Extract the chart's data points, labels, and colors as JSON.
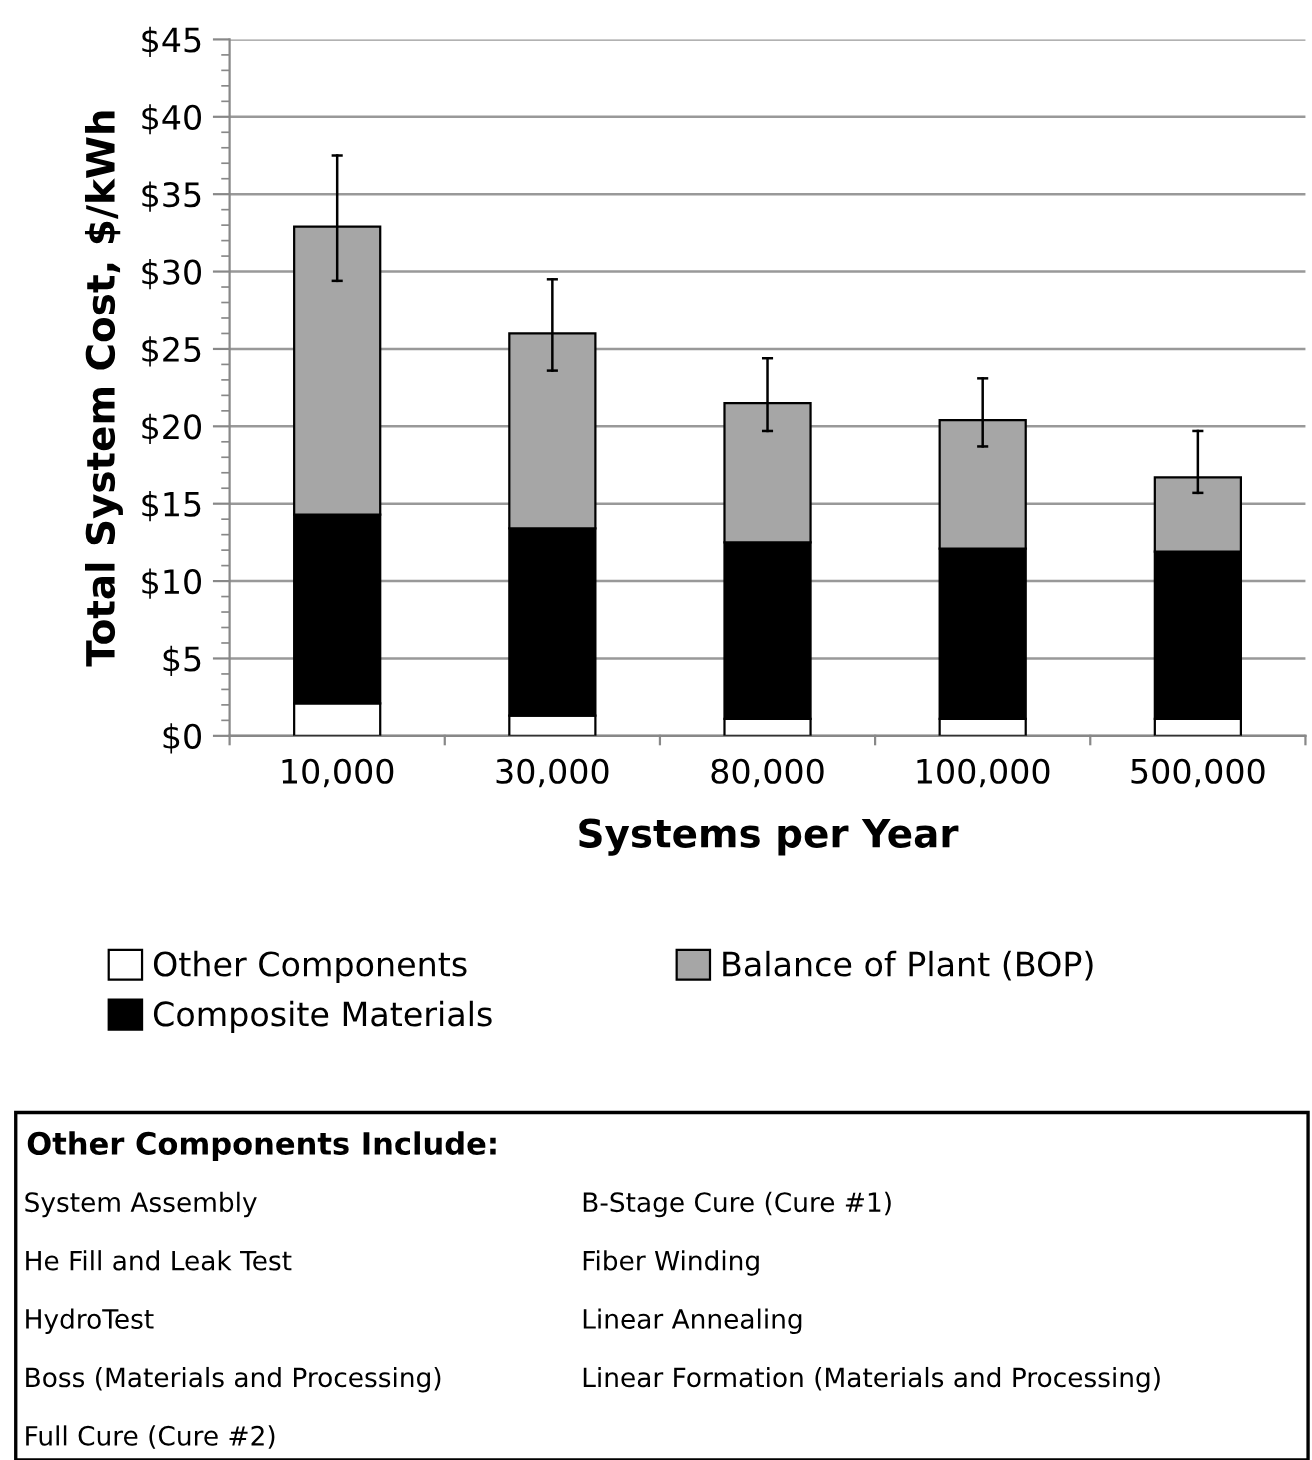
{
  "chart_data": {
    "type": "bar",
    "stacked": true,
    "xlabel": "Systems per Year",
    "ylabel": "Total System Cost, $/kWh",
    "categories": [
      "10,000",
      "30,000",
      "80,000",
      "100,000",
      "500,000"
    ],
    "series": [
      {
        "name": "Other Components",
        "color": "#ffffff",
        "values": [
          2.1,
          1.3,
          1.1,
          1.1,
          1.1
        ]
      },
      {
        "name": "Composite Materials",
        "color": "#000000",
        "values": [
          12.2,
          12.1,
          11.4,
          11.0,
          10.8
        ]
      },
      {
        "name": "Balance of Plant (BOP)",
        "color": "#a6a6a6",
        "values": [
          18.6,
          12.6,
          9.0,
          8.3,
          4.8
        ],
        "errors": [
          [
            29.4,
            37.5
          ],
          [
            23.6,
            29.5
          ],
          [
            19.7,
            24.4
          ],
          [
            18.7,
            23.1
          ],
          [
            15.7,
            19.7
          ]
        ]
      }
    ],
    "ylim": [
      0,
      45
    ],
    "yticks": [
      {
        "value": 0,
        "label": "$0"
      },
      {
        "value": 5,
        "label": "$5"
      },
      {
        "value": 10,
        "label": "$10"
      },
      {
        "value": 15,
        "label": "$15"
      },
      {
        "value": 20,
        "label": "$20"
      },
      {
        "value": 25,
        "label": "$25"
      },
      {
        "value": 30,
        "label": "$30"
      },
      {
        "value": 35,
        "label": "$35"
      },
      {
        "value": 40,
        "label": "$40"
      },
      {
        "value": 45,
        "label": "$45"
      }
    ],
    "grid": "y",
    "legend": "bottom",
    "annotations": [
      "Other Components Include:",
      "System Assembly",
      "B-Stage Cure (Cure #1)",
      "He Fill and Leak Test",
      "Fiber Winding",
      "HydroTest",
      "Linear Annealing",
      "Boss (Materials and Processing)",
      "Linear Formation (Materials and Processing)",
      "Full Cure (Cure #2)"
    ]
  }
}
